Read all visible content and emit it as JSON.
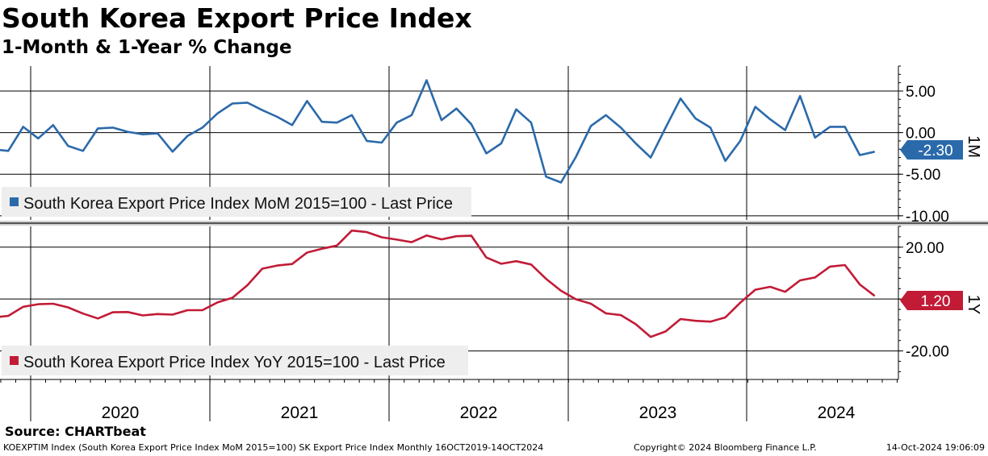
{
  "header": {
    "title": "South Korea Export Price Index",
    "subtitle": "1-Month & 1-Year % Change"
  },
  "footer": {
    "source": "Source:  CHARTbeat",
    "ticker_desc": "KOEXPTIM Index (South Korea Export Price Index MoM 2015=100) SK Export Price Index  Monthly 16OCT2019-14OCT2024",
    "copyright": "Copyright© 2024 Bloomberg Finance L.P.",
    "timestamp": "14-Oct-2024 19:06:09"
  },
  "colors": {
    "mom": "#2b6aaa",
    "yoy": "#c11b36"
  },
  "chart_data": [
    {
      "type": "line",
      "panel_label": "1M",
      "legend": "South Korea Export Price Index MoM 2015=100 - Last Price",
      "legend_placement": "bottom-left",
      "last_value_label": "-2.30",
      "ylim": [
        -10.5,
        8.0
      ],
      "yticks": [
        5.0,
        0.0,
        -5.0,
        -10.0
      ],
      "ytick_labels": [
        "5.00",
        "0.00",
        "-5.00",
        "-10.00"
      ],
      "x_year_labels": [
        "2020",
        "2021",
        "2022",
        "2023",
        "2024"
      ],
      "grid": true,
      "x_start": "2019-10",
      "series": [
        {
          "name": "South Korea Export Price Index MoM 2015=100 - Last Price",
          "values": [
            -2.0,
            -2.2,
            0.7,
            -0.7,
            0.9,
            -1.6,
            -2.2,
            0.5,
            0.6,
            0.1,
            -0.2,
            -0.1,
            -2.3,
            -0.4,
            0.6,
            2.3,
            3.5,
            3.6,
            2.7,
            1.9,
            0.9,
            3.8,
            1.3,
            1.2,
            2.1,
            -1.0,
            -1.2,
            1.2,
            2.1,
            6.3,
            1.5,
            2.9,
            1.0,
            -2.5,
            -1.3,
            2.8,
            1.2,
            -5.3,
            -6.0,
            -2.9,
            0.8,
            2.1,
            0.6,
            -1.3,
            -3.0,
            0.6,
            4.1,
            1.7,
            0.6,
            -3.4,
            -1.0,
            3.1,
            1.6,
            0.3,
            4.4,
            -0.6,
            0.7,
            0.7,
            -2.7,
            -2.3
          ]
        }
      ]
    },
    {
      "type": "line",
      "panel_label": "1Y",
      "legend": "South Korea Export Price Index YoY 2015=100 - Last Price",
      "legend_placement": "bottom-left",
      "last_value_label": "1.20",
      "ylim": [
        -31.0,
        28.0
      ],
      "yticks": [
        20.0,
        0.0,
        -20.0
      ],
      "ytick_labels": [
        "20.00",
        "",
        "-20.00"
      ],
      "x_year_labels": [
        "2020",
        "2021",
        "2022",
        "2023",
        "2024"
      ],
      "grid": true,
      "x_start": "2019-10",
      "series": [
        {
          "name": "South Korea Export Price Index YoY 2015=100 - Last Price",
          "values": [
            -7.1,
            -6.5,
            -3.0,
            -2.0,
            -1.8,
            -3.2,
            -5.6,
            -7.5,
            -5.1,
            -5.0,
            -6.3,
            -5.8,
            -6.0,
            -4.3,
            -4.3,
            -1.3,
            0.5,
            5.3,
            11.7,
            12.9,
            13.5,
            17.9,
            19.4,
            20.6,
            26.4,
            25.8,
            23.8,
            22.9,
            21.9,
            24.5,
            23.0,
            24.2,
            24.4,
            16.0,
            13.6,
            14.6,
            13.3,
            7.8,
            3.2,
            -0.1,
            -1.8,
            -5.5,
            -6.2,
            -9.7,
            -14.6,
            -12.5,
            -7.7,
            -8.4,
            -8.7,
            -7.1,
            -1.4,
            3.6,
            4.7,
            2.8,
            7.2,
            8.3,
            12.5,
            13.1,
            5.6,
            1.2
          ]
        }
      ]
    }
  ]
}
